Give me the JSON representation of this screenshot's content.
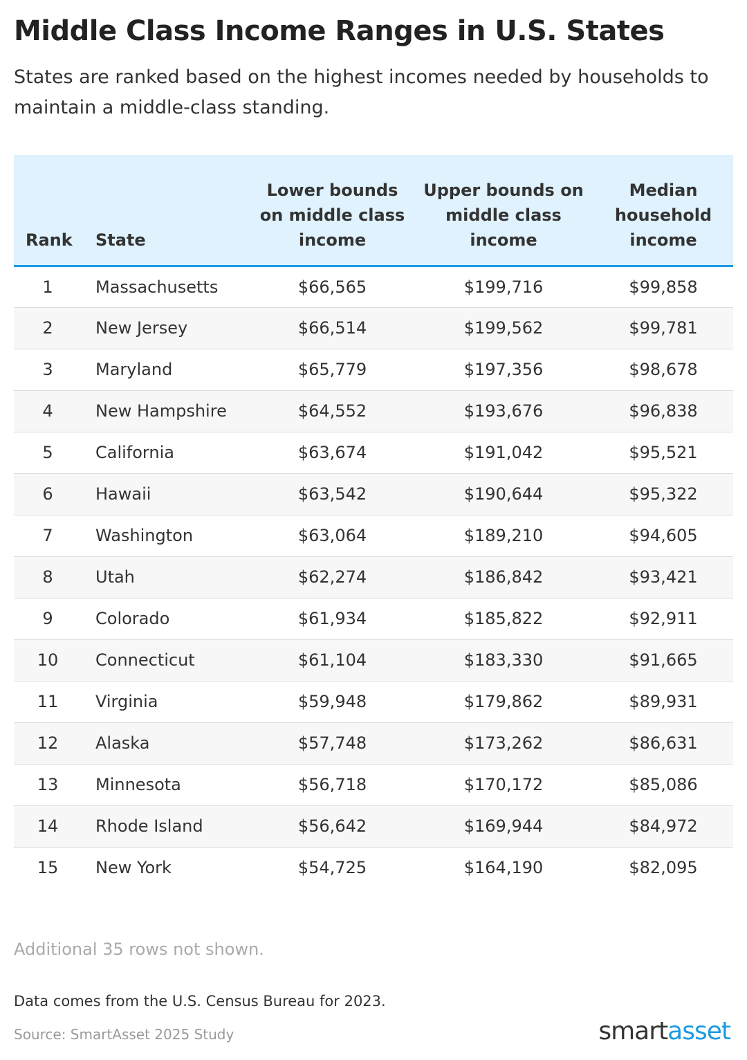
{
  "header": {
    "title": "Middle Class Income Ranges in U.S. States",
    "subtitle": "States are ranked based on the highest incomes needed by households to maintain a middle-class standing."
  },
  "table": {
    "columns": [
      "Rank",
      "State",
      "Lower bounds on middle class income",
      "Upper bounds on middle class income",
      "Median household income"
    ],
    "rows": [
      [
        1,
        "Massachusetts",
        "$66,565",
        "$199,716",
        "$99,858"
      ],
      [
        2,
        "New Jersey",
        "$66,514",
        "$199,562",
        "$99,781"
      ],
      [
        3,
        "Maryland",
        "$65,779",
        "$197,356",
        "$98,678"
      ],
      [
        4,
        "New Hampshire",
        "$64,552",
        "$193,676",
        "$96,838"
      ],
      [
        5,
        "California",
        "$63,674",
        "$191,042",
        "$95,521"
      ],
      [
        6,
        "Hawaii",
        "$63,542",
        "$190,644",
        "$95,322"
      ],
      [
        7,
        "Washington",
        "$63,064",
        "$189,210",
        "$94,605"
      ],
      [
        8,
        "Utah",
        "$62,274",
        "$186,842",
        "$93,421"
      ],
      [
        9,
        "Colorado",
        "$61,934",
        "$185,822",
        "$92,911"
      ],
      [
        10,
        "Connecticut",
        "$61,104",
        "$183,330",
        "$91,665"
      ],
      [
        11,
        "Virginia",
        "$59,948",
        "$179,862",
        "$89,931"
      ],
      [
        12,
        "Alaska",
        "$57,748",
        "$173,262",
        "$86,631"
      ],
      [
        13,
        "Minnesota",
        "$56,718",
        "$170,172",
        "$85,086"
      ],
      [
        14,
        "Rhode Island",
        "$56,642",
        "$169,944",
        "$84,972"
      ],
      [
        15,
        "New York",
        "$54,725",
        "$164,190",
        "$82,095"
      ]
    ],
    "more_rows_note": "Additional 35 rows not shown."
  },
  "footer": {
    "note": "Data comes from the U.S. Census Bureau for 2023.",
    "source": "Source: SmartAsset 2025 Study",
    "logo": {
      "dark": "smart",
      "accent": "asset"
    }
  }
}
